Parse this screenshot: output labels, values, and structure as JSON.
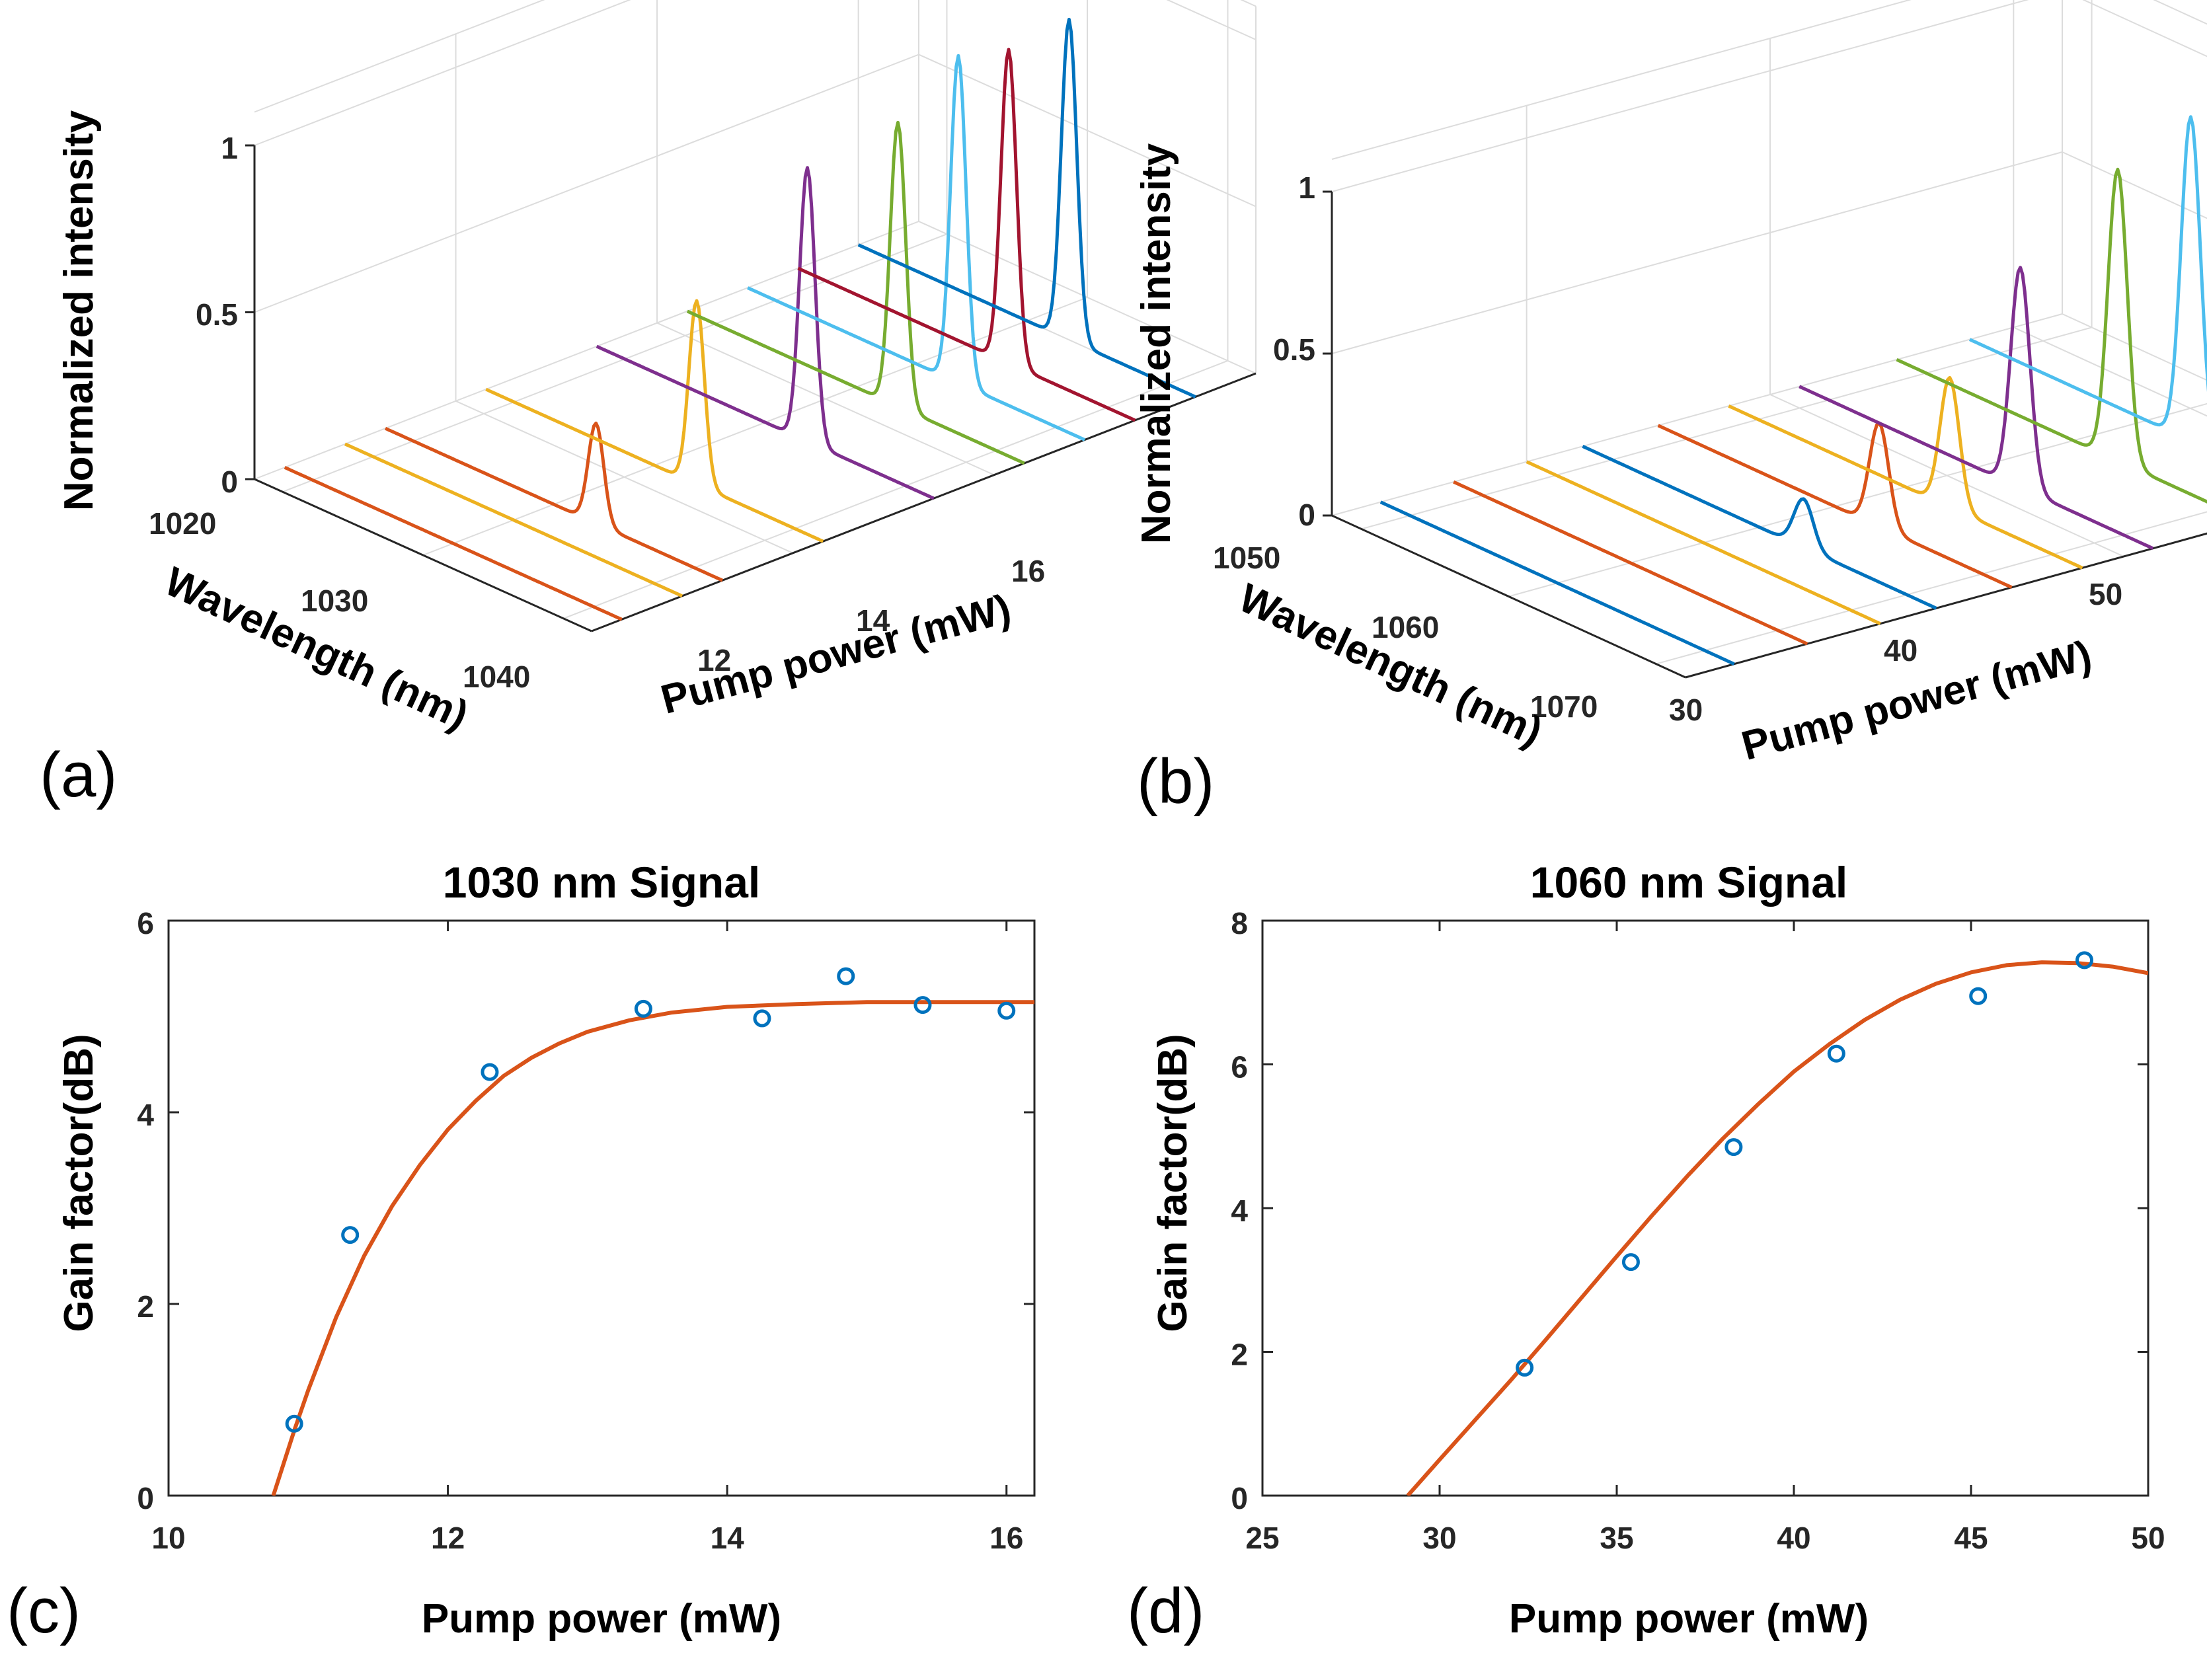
{
  "colors": {
    "blue": "#0072BD",
    "orange": "#D95319",
    "yellow": "#EDB120",
    "purple": "#7E2F8E",
    "green": "#77AC30",
    "cyan": "#4DBEEE",
    "darkred": "#A2142F",
    "axis": "#262626",
    "grid": "#dcdcdc"
  },
  "chart_data": [
    {
      "id": "a",
      "type": "waterfall-3d",
      "panel_label": "(a)",
      "zlabel": "Normalized intensity",
      "wavelength_label": "Wavelength (nm)",
      "pump_label": "Pump power  (mW)",
      "z_ticks": [
        "0",
        "0.5",
        "1"
      ],
      "wavelength_ticks": [
        "1020",
        "1030",
        "1040"
      ],
      "pump_ticks": [
        "12",
        "14",
        "16"
      ],
      "series": [
        {
          "pump_mW": 10.3,
          "peak_wavelength_nm": 1033,
          "peak_intensity": 0.0,
          "color": "orange"
        },
        {
          "pump_mW": 10.9,
          "peak_wavelength_nm": 1033,
          "peak_intensity": 0.0,
          "color": "yellow"
        },
        {
          "pump_mW": 11.3,
          "peak_wavelength_nm": 1033,
          "peak_intensity": 0.3,
          "color": "orange"
        },
        {
          "pump_mW": 12.3,
          "peak_wavelength_nm": 1033,
          "peak_intensity": 0.55,
          "color": "yellow"
        },
        {
          "pump_mW": 13.4,
          "peak_wavelength_nm": 1033,
          "peak_intensity": 0.82,
          "color": "purple"
        },
        {
          "pump_mW": 14.3,
          "peak_wavelength_nm": 1033,
          "peak_intensity": 0.85,
          "color": "green"
        },
        {
          "pump_mW": 14.9,
          "peak_wavelength_nm": 1033,
          "peak_intensity": 0.98,
          "color": "cyan"
        },
        {
          "pump_mW": 15.4,
          "peak_wavelength_nm": 1033,
          "peak_intensity": 0.94,
          "color": "darkred"
        },
        {
          "pump_mW": 16.0,
          "peak_wavelength_nm": 1033,
          "peak_intensity": 0.96,
          "color": "blue"
        }
      ]
    },
    {
      "id": "b",
      "type": "waterfall-3d",
      "panel_label": "(b)",
      "zlabel": "Normalized intensity",
      "wavelength_label": "Wavelength (nm)",
      "pump_label": "Pump power  (mW)",
      "z_ticks": [
        "0",
        "0.5",
        "1"
      ],
      "wavelength_ticks": [
        "1050",
        "1060",
        "1070"
      ],
      "pump_ticks": [
        "30",
        "40",
        "50"
      ],
      "series": [
        {
          "pump_mW": 24,
          "peak_wavelength_nm": 1063,
          "peak_intensity": 0.0,
          "color": "blue"
        },
        {
          "pump_mW": 27,
          "peak_wavelength_nm": 1063,
          "peak_intensity": 0.0,
          "color": "orange"
        },
        {
          "pump_mW": 30,
          "peak_wavelength_nm": 1063,
          "peak_intensity": 0.0,
          "color": "yellow"
        },
        {
          "pump_mW": 32.3,
          "peak_wavelength_nm": 1063,
          "peak_intensity": 0.15,
          "color": "blue"
        },
        {
          "pump_mW": 35.4,
          "peak_wavelength_nm": 1063,
          "peak_intensity": 0.32,
          "color": "orange"
        },
        {
          "pump_mW": 38.3,
          "peak_wavelength_nm": 1063,
          "peak_intensity": 0.4,
          "color": "yellow"
        },
        {
          "pump_mW": 41.2,
          "peak_wavelength_nm": 1063,
          "peak_intensity": 0.68,
          "color": "purple"
        },
        {
          "pump_mW": 45.2,
          "peak_wavelength_nm": 1063,
          "peak_intensity": 0.9,
          "color": "green"
        },
        {
          "pump_mW": 48.2,
          "peak_wavelength_nm": 1063,
          "peak_intensity": 1.0,
          "color": "cyan"
        }
      ]
    },
    {
      "id": "c",
      "type": "scatter",
      "panel_label": "(c)",
      "title": "1030 nm Signal",
      "xlabel": "Pump power (mW)",
      "ylabel": "Gain factor(dB)",
      "xlim": [
        10,
        16.2
      ],
      "ylim": [
        0,
        6
      ],
      "x_ticks": [
        10,
        12,
        14,
        16
      ],
      "y_ticks": [
        0,
        2,
        4,
        6
      ],
      "points": {
        "x": [
          10.9,
          11.3,
          12.3,
          13.4,
          14.25,
          14.85,
          15.4,
          16.0
        ],
        "y": [
          0.75,
          2.72,
          4.42,
          5.08,
          4.98,
          5.42,
          5.12,
          5.06
        ]
      },
      "fit": {
        "x": [
          10.75,
          10.9,
          11.0,
          11.2,
          11.4,
          11.6,
          11.8,
          12.0,
          12.2,
          12.4,
          12.6,
          12.8,
          13.0,
          13.3,
          13.6,
          14.0,
          14.5,
          15.0,
          15.5,
          16.0,
          16.2
        ],
        "y": [
          0.0,
          0.68,
          1.1,
          1.86,
          2.5,
          3.02,
          3.45,
          3.82,
          4.12,
          4.38,
          4.57,
          4.72,
          4.84,
          4.96,
          5.04,
          5.1,
          5.13,
          5.15,
          5.15,
          5.15,
          5.15
        ]
      }
    },
    {
      "id": "d",
      "type": "scatter",
      "panel_label": "(d)",
      "title": "1060 nm Signal",
      "xlabel": "Pump power (mW)",
      "ylabel": "Gain factor(dB)",
      "xlim": [
        25,
        50
      ],
      "ylim": [
        0,
        8
      ],
      "x_ticks": [
        25,
        30,
        35,
        40,
        45,
        50
      ],
      "y_ticks": [
        0,
        2,
        4,
        6,
        8
      ],
      "points": {
        "x": [
          32.4,
          35.4,
          38.3,
          41.2,
          45.2,
          48.2
        ],
        "y": [
          1.78,
          3.25,
          4.85,
          6.15,
          6.95,
          7.45
        ]
      },
      "fit": {
        "x": [
          29.1,
          30,
          31,
          32,
          33,
          34,
          35,
          36,
          37,
          38,
          39,
          40,
          41,
          42,
          43,
          44,
          45,
          46,
          47,
          48,
          49,
          50
        ],
        "y": [
          0.0,
          0.5,
          1.05,
          1.6,
          2.17,
          2.75,
          3.33,
          3.9,
          4.45,
          4.97,
          5.45,
          5.9,
          6.28,
          6.62,
          6.9,
          7.12,
          7.28,
          7.38,
          7.42,
          7.41,
          7.36,
          7.27
        ]
      }
    }
  ]
}
